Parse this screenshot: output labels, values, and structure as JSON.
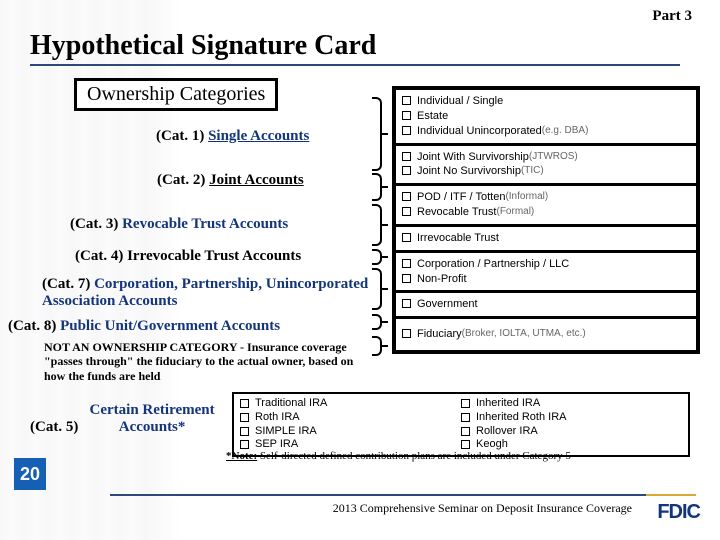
{
  "part": "Part  3",
  "title": "Hypothetical Signature Card",
  "ownership_box": "Ownership Categories",
  "cats": {
    "c1": {
      "label": "(Cat. 1)",
      "text": "Single Accounts"
    },
    "c2": {
      "label": "(Cat. 2)",
      "text": "Joint Accounts"
    },
    "c3": {
      "label": "(Cat. 3)",
      "text": "Revocable Trust Accounts"
    },
    "c4": {
      "label": "(Cat. 4)",
      "text": "Irrevocable Trust Accounts"
    },
    "c7": {
      "label": "(Cat. 7)",
      "text": "Corporation, Partnership, Unincorporated Association Accounts"
    },
    "c8": {
      "label": "(Cat. 8)",
      "text": "Public Unit/Government Accounts"
    },
    "c5": {
      "label": "(Cat. 5)",
      "text": "Certain Retirement Accounts*"
    }
  },
  "not_owner": "NOT AN OWNERSHIP CATEGORY - Insurance coverage \"passes through\" the fiduciary to the actual owner, based on how the funds are held",
  "note5_b": "*Note:",
  "note5_rest": " Self-directed defined contribution plans are included under Category 5",
  "panel": {
    "g1": [
      {
        "t": "Individual / Single"
      },
      {
        "t": "Estate"
      },
      {
        "t": "Individual Unincorporated ",
        "sub": "(e.g. DBA)"
      }
    ],
    "g2": [
      {
        "t": "Joint With Survivorship ",
        "sub": "(JTWROS)"
      },
      {
        "t": "Joint No Survivorship ",
        "sub": "(TIC)"
      }
    ],
    "g3": [
      {
        "t": "POD / ITF / Totten ",
        "sub": "(Informal)"
      },
      {
        "t": "Revocable Trust ",
        "sub": "(Formal)"
      }
    ],
    "g4": [
      {
        "t": "Irrevocable Trust"
      }
    ],
    "g5": [
      {
        "t": "Corporation / Partnership / LLC"
      },
      {
        "t": "Non-Profit"
      }
    ],
    "g6": [
      {
        "t": "Government"
      }
    ],
    "g7": [
      {
        "t": "Fiduciary ",
        "sub": "(Broker, IOLTA, UTMA, etc.)"
      }
    ]
  },
  "ira": {
    "col1": [
      "Traditional IRA",
      "Roth IRA",
      "SIMPLE IRA",
      "SEP IRA"
    ],
    "col2": [
      "Inherited IRA",
      "Inherited Roth IRA",
      "Rollover IRA",
      "Keogh"
    ]
  },
  "page_number": "20",
  "footer": "2013 Comprehensive Seminar on Deposit Insurance Coverage",
  "fdic": "FDIC",
  "colors": {
    "accent_blue": "#13357a",
    "rule_blue": "#2b4a7a",
    "badge_blue": "#1560b5",
    "gold": "#d7a93a"
  }
}
